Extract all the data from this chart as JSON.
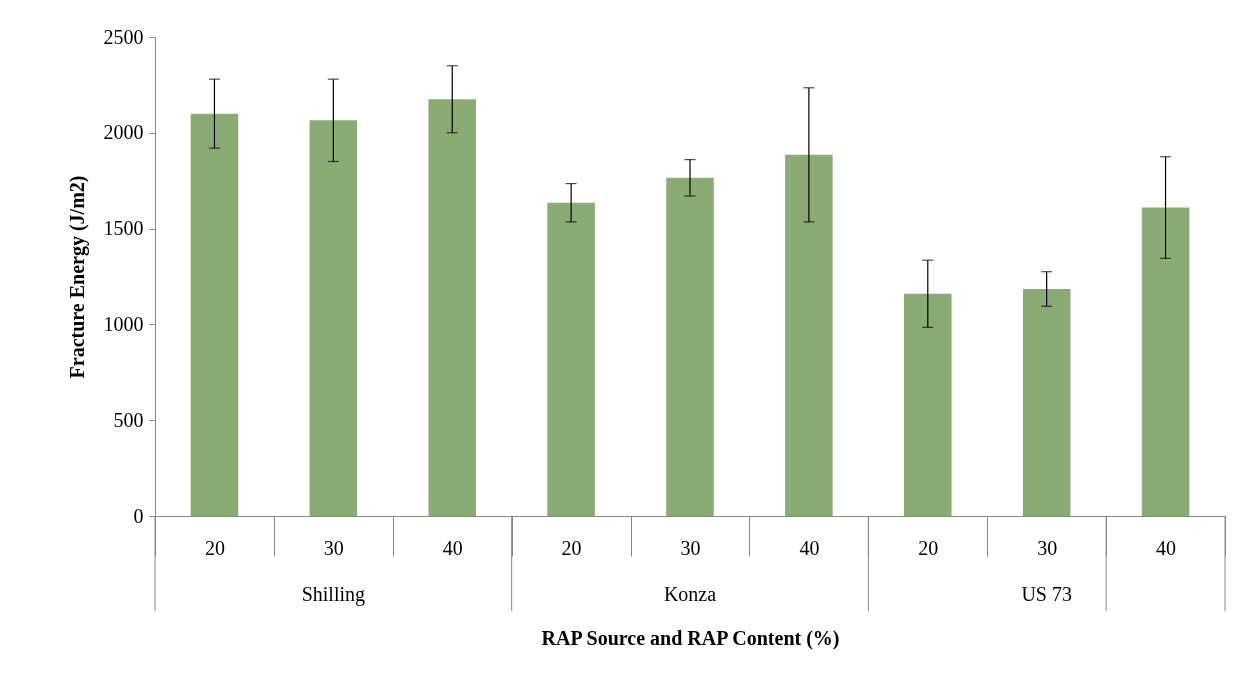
{
  "chart_data": {
    "type": "bar",
    "xlabel": "RAP Source and RAP Content (%)",
    "ylabel": "Fracture Energy (J/m2)",
    "categories": [
      "20",
      "30",
      "40",
      "20",
      "30",
      "40",
      "20",
      "30",
      "40"
    ],
    "values": [
      2100,
      2065,
      2175,
      1635,
      1765,
      1885,
      1160,
      1185,
      1610
    ],
    "errors": [
      180,
      215,
      175,
      100,
      95,
      350,
      175,
      90,
      265
    ],
    "color": "#8bab74",
    "ylim": [
      0,
      2500
    ],
    "yticks": [
      0,
      500,
      1000,
      1500,
      2000,
      2500
    ],
    "grid": false,
    "annotations": [
      "Shilling",
      "Konza",
      "US 73"
    ]
  }
}
